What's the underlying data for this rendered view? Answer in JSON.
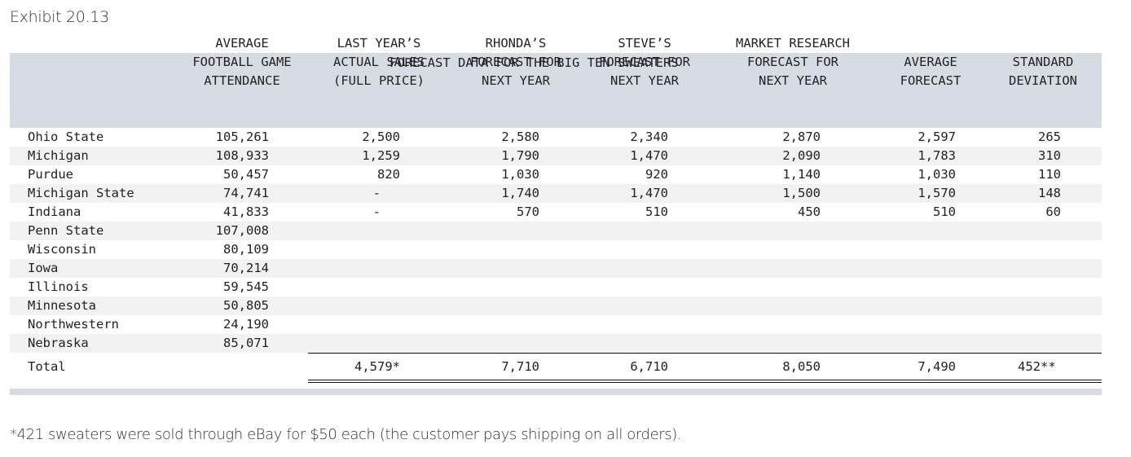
{
  "title": "Exhibit 20.13",
  "table": {
    "super_header": "FORECAST DATA FOR THE BIG TEN SWEATERS",
    "columns": [
      {
        "key": "school",
        "lines": [
          ""
        ]
      },
      {
        "key": "attendance",
        "lines": [
          "AVERAGE",
          "FOOTBALL GAME",
          "ATTENDANCE"
        ]
      },
      {
        "key": "last_year",
        "lines": [
          "LAST YEAR’S",
          "ACTUAL SALES",
          "(FULL PRICE)"
        ]
      },
      {
        "key": "rhonda",
        "lines": [
          "RHONDA’S",
          "FORECAST FOR",
          "NEXT YEAR"
        ]
      },
      {
        "key": "steve",
        "lines": [
          "STEVE’S",
          "FORECAST FOR",
          "NEXT YEAR"
        ]
      },
      {
        "key": "market",
        "lines": [
          "MARKET RESEARCH",
          "FORECAST FOR",
          "NEXT YEAR"
        ]
      },
      {
        "key": "avg",
        "lines": [
          "AVERAGE",
          "FORECAST"
        ]
      },
      {
        "key": "std",
        "lines": [
          "STANDARD",
          "DEVIATION"
        ]
      }
    ],
    "rows": [
      {
        "school": "Ohio State",
        "attendance": "105,261",
        "last_year": "2,500",
        "rhonda": "2,580",
        "steve": "2,340",
        "market": "2,870",
        "avg": "2,597",
        "std": "265"
      },
      {
        "school": "Michigan",
        "attendance": "108,933",
        "last_year": "1,259",
        "rhonda": "1,790",
        "steve": "1,470",
        "market": "2,090",
        "avg": "1,783",
        "std": "310"
      },
      {
        "school": "Purdue",
        "attendance": "50,457",
        "last_year": "820",
        "rhonda": "1,030",
        "steve": "920",
        "market": "1,140",
        "avg": "1,030",
        "std": "110"
      },
      {
        "school": "Michigan State",
        "attendance": "74,741",
        "last_year": "-",
        "rhonda": "1,740",
        "steve": "1,470",
        "market": "1,500",
        "avg": "1,570",
        "std": "148"
      },
      {
        "school": "Indiana",
        "attendance": "41,833",
        "last_year": "-",
        "rhonda": "570",
        "steve": "510",
        "market": "450",
        "avg": "510",
        "std": "60"
      },
      {
        "school": "Penn State",
        "attendance": "107,008",
        "last_year": "",
        "rhonda": "",
        "steve": "",
        "market": "",
        "avg": "",
        "std": ""
      },
      {
        "school": "Wisconsin",
        "attendance": "80,109",
        "last_year": "",
        "rhonda": "",
        "steve": "",
        "market": "",
        "avg": "",
        "std": ""
      },
      {
        "school": "Iowa",
        "attendance": "70,214",
        "last_year": "",
        "rhonda": "",
        "steve": "",
        "market": "",
        "avg": "",
        "std": ""
      },
      {
        "school": "Illinois",
        "attendance": "59,545",
        "last_year": "",
        "rhonda": "",
        "steve": "",
        "market": "",
        "avg": "",
        "std": ""
      },
      {
        "school": "Minnesota",
        "attendance": "50,805",
        "last_year": "",
        "rhonda": "",
        "steve": "",
        "market": "",
        "avg": "",
        "std": ""
      },
      {
        "school": "Northwestern",
        "attendance": "24,190",
        "last_year": "",
        "rhonda": "",
        "steve": "",
        "market": "",
        "avg": "",
        "std": ""
      },
      {
        "school": "Nebraska",
        "attendance": "85,071",
        "last_year": "",
        "rhonda": "",
        "steve": "",
        "market": "",
        "avg": "",
        "std": ""
      }
    ],
    "total": {
      "school": "Total",
      "attendance": "",
      "last_year": "4,579*",
      "rhonda": "7,710",
      "steve": "6,710",
      "market": "8,050",
      "avg": "7,490",
      "std": "452**"
    }
  },
  "footnote": "*421 sweaters were sold through eBay for $50 each (the customer pays shipping on all orders).",
  "colors": {
    "header_band": "#d7dbe4",
    "alt_row": "#f2f2f2",
    "rule": "#111111"
  }
}
